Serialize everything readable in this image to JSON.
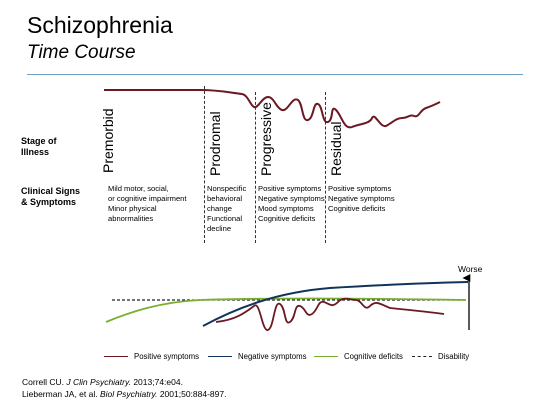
{
  "header": {
    "title": "Schizophrenia",
    "subtitle": "Time Course"
  },
  "row_labels": {
    "stage": [
      "Stage of",
      "Illness"
    ],
    "signs": [
      "Clinical Signs",
      "& Symptoms"
    ]
  },
  "stages": [
    {
      "name": "Premorbid",
      "signs": [
        "Mild motor, social,",
        "or cognitive impairment",
        "Minor physical",
        "abnormalities"
      ]
    },
    {
      "name": "Prodromal",
      "signs": [
        "Nonspecific",
        "behavioral",
        "change",
        "Functional",
        "decline"
      ]
    },
    {
      "name": "Progressive",
      "signs": [
        "Positive symptoms",
        "Negative symptoms",
        "Mood symptoms",
        "Cognitive deficits"
      ]
    },
    {
      "name": "Residual",
      "signs": [
        "Positive symptoms",
        "Negative symptoms",
        "Cognitive deficits"
      ]
    }
  ],
  "axis": {
    "worse_label": "Worse"
  },
  "legend": [
    {
      "label": "Positive symptoms",
      "color": "#6b1a24",
      "style": "solid"
    },
    {
      "label": "Negative symptoms",
      "color": "#12345a",
      "style": "solid"
    },
    {
      "label": "Cognitive deficits",
      "color": "#7aae2e",
      "style": "solid"
    },
    {
      "label": "Disability",
      "color": "#222222",
      "style": "dashed"
    }
  ],
  "references": [
    {
      "authors": "Correll CU. ",
      "journal": "J Clin Psychiatry.",
      "details": " 2013;74:e04."
    },
    {
      "authors": "Lieberman JA, et al. ",
      "journal": "Biol Psychiatry.",
      "details": " 2001;50:884-897."
    }
  ],
  "colors": {
    "positive": "#6b1a24",
    "negative": "#12345a",
    "cognitive": "#7aae2e",
    "disability": "#222222",
    "rule": "#6f9fc0"
  }
}
